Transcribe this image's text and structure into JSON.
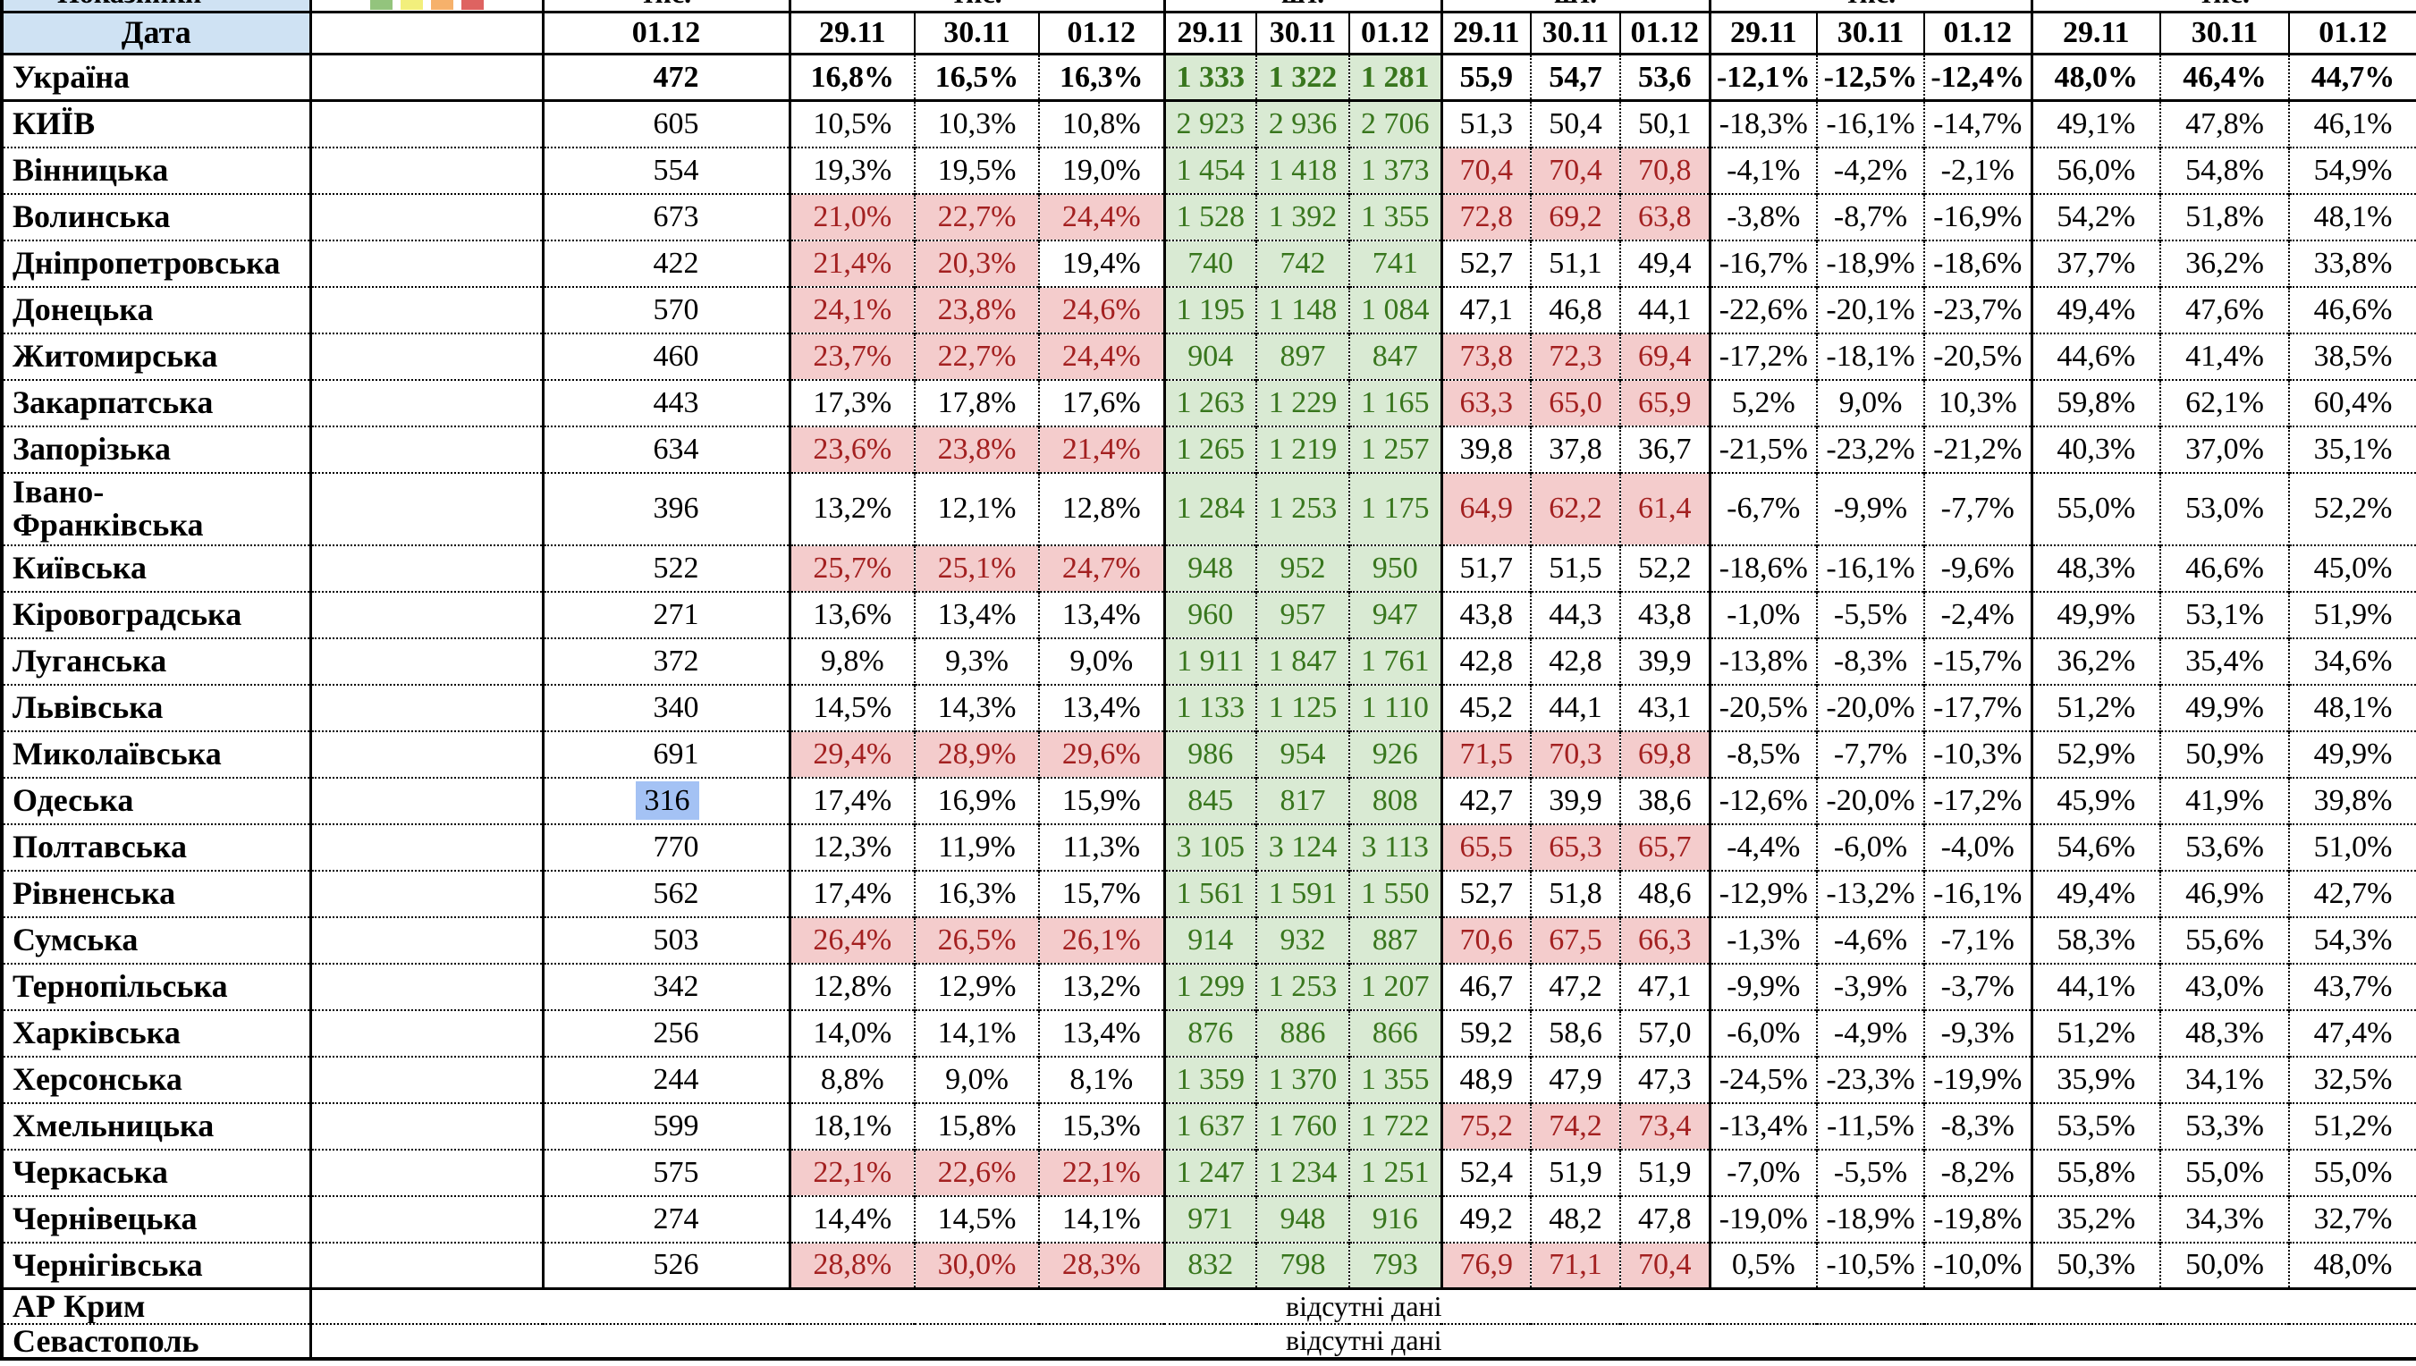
{
  "colors": {
    "red": "#DE6361",
    "orange": "#F6B16B",
    "yellow": "#F2EF7C",
    "legend_green": "#93C47D",
    "header_blue": "#CFE2F3",
    "green_bg": "#D9EAD3",
    "green_text": "#38761D",
    "pink_bg": "#F4CCCC",
    "pink_text": "#A32020",
    "selection_blue": "#A4C2F4"
  },
  "top_row": {
    "col1_fragment": "Показники",
    "legend_colors": [
      "#93C47D",
      "#F2EF7C",
      "#F6B16B",
      "#DE6361"
    ],
    "group_fragments": [
      "тис.",
      "тис.",
      "шт.",
      "шт.",
      "тис.",
      "тис."
    ]
  },
  "date_header": {
    "label": "Дата",
    "single_date": "01.12",
    "triple_dates": [
      "29.11",
      "30.11",
      "01.12"
    ]
  },
  "ukraine_row": {
    "name": "Україна",
    "v1": "472",
    "pct1": [
      "16,8%",
      "16,5%",
      "16,3%"
    ],
    "green": [
      "1 333",
      "1 322",
      "1 281"
    ],
    "v3": [
      "55,9",
      "54,7",
      "53,6"
    ],
    "pct4": [
      "-12,1%",
      "-12,5%",
      "-12,4%"
    ],
    "pct5": [
      "48,0%",
      "46,4%",
      "44,7%"
    ]
  },
  "regions": [
    {
      "name": "КИЇВ",
      "color": "red",
      "v1": "605",
      "pct1": [
        "10,5%",
        "10,3%",
        "10,8%"
      ],
      "green": [
        "2 923",
        "2 936",
        "2 706"
      ],
      "v3": [
        "51,3",
        "50,4",
        "50,1"
      ],
      "pct4": [
        "-18,3%",
        "-16,1%",
        "-14,7%"
      ],
      "pct5": [
        "49,1%",
        "47,8%",
        "46,1%"
      ]
    },
    {
      "name": "Вінницька",
      "color": "red",
      "v1": "554",
      "pct1": [
        "19,3%",
        "19,5%",
        "19,0%"
      ],
      "green": [
        "1 454",
        "1 418",
        "1 373"
      ],
      "v3": [
        "70,4",
        "70,4",
        "70,8"
      ],
      "pct4": [
        "-4,1%",
        "-4,2%",
        "-2,1%"
      ],
      "pct5": [
        "56,0%",
        "54,8%",
        "54,9%"
      ]
    },
    {
      "name": "Волинська",
      "color": "red",
      "v1": "673",
      "pct1": [
        "21,0%",
        "22,7%",
        "24,4%"
      ],
      "green": [
        "1 528",
        "1 392",
        "1 355"
      ],
      "v3": [
        "72,8",
        "69,2",
        "63,8"
      ],
      "pct4": [
        "-3,8%",
        "-8,7%",
        "-16,9%"
      ],
      "pct5": [
        "54,2%",
        "51,8%",
        "48,1%"
      ]
    },
    {
      "name": "Дніпропетровська",
      "color": "red",
      "v1": "422",
      "pct1": [
        "21,4%",
        "20,3%",
        "19,4%"
      ],
      "green": [
        "740",
        "742",
        "741"
      ],
      "v3": [
        "52,7",
        "51,1",
        "49,4"
      ],
      "pct4": [
        "-16,7%",
        "-18,9%",
        "-18,6%"
      ],
      "pct5": [
        "37,7%",
        "36,2%",
        "33,8%"
      ]
    },
    {
      "name": "Донецька",
      "color": "red",
      "v1": "570",
      "pct1": [
        "24,1%",
        "23,8%",
        "24,6%"
      ],
      "green": [
        "1 195",
        "1 148",
        "1 084"
      ],
      "v3": [
        "47,1",
        "46,8",
        "44,1"
      ],
      "pct4": [
        "-22,6%",
        "-20,1%",
        "-23,7%"
      ],
      "pct5": [
        "49,4%",
        "47,6%",
        "46,6%"
      ]
    },
    {
      "name": "Житомирська",
      "color": "red",
      "v1": "460",
      "pct1": [
        "23,7%",
        "22,7%",
        "24,4%"
      ],
      "green": [
        "904",
        "897",
        "847"
      ],
      "v3": [
        "73,8",
        "72,3",
        "69,4"
      ],
      "pct4": [
        "-17,2%",
        "-18,1%",
        "-20,5%"
      ],
      "pct5": [
        "44,6%",
        "41,4%",
        "38,5%"
      ]
    },
    {
      "name": "Закарпатська",
      "color": "orange",
      "v1": "443",
      "pct1": [
        "17,3%",
        "17,8%",
        "17,6%"
      ],
      "green": [
        "1 263",
        "1 229",
        "1 165"
      ],
      "v3": [
        "63,3",
        "65,0",
        "65,9"
      ],
      "pct4": [
        "5,2%",
        "9,0%",
        "10,3%"
      ],
      "pct5": [
        "59,8%",
        "62,1%",
        "60,4%"
      ]
    },
    {
      "name": "Запорізька",
      "color": "red",
      "v1": "634",
      "pct1": [
        "23,6%",
        "23,8%",
        "21,4%"
      ],
      "green": [
        "1 265",
        "1 219",
        "1 257"
      ],
      "v3": [
        "39,8",
        "37,8",
        "36,7"
      ],
      "pct4": [
        "-21,5%",
        "-23,2%",
        "-21,2%"
      ],
      "pct5": [
        "40,3%",
        "37,0%",
        "35,1%"
      ]
    },
    {
      "name": "Івано-\nФранківська",
      "color": "red",
      "tall": true,
      "v1": "396",
      "pct1": [
        "13,2%",
        "12,1%",
        "12,8%"
      ],
      "green": [
        "1 284",
        "1 253",
        "1 175"
      ],
      "v3": [
        "64,9",
        "62,2",
        "61,4"
      ],
      "pct4": [
        "-6,7%",
        "-9,9%",
        "-7,7%"
      ],
      "pct5": [
        "55,0%",
        "53,0%",
        "52,2%"
      ]
    },
    {
      "name": "Київська",
      "color": "red",
      "v1": "522",
      "pct1": [
        "25,7%",
        "25,1%",
        "24,7%"
      ],
      "green": [
        "948",
        "952",
        "950"
      ],
      "v3": [
        "51,7",
        "51,5",
        "52,2"
      ],
      "pct4": [
        "-18,6%",
        "-16,1%",
        "-9,6%"
      ],
      "pct5": [
        "48,3%",
        "46,6%",
        "45,0%"
      ]
    },
    {
      "name": "Кіровоградська",
      "color": "yellow",
      "v1": "271",
      "pct1": [
        "13,6%",
        "13,4%",
        "13,4%"
      ],
      "green": [
        "960",
        "957",
        "947"
      ],
      "v3": [
        "43,8",
        "44,3",
        "43,8"
      ],
      "pct4": [
        "-1,0%",
        "-5,5%",
        "-2,4%"
      ],
      "pct5": [
        "49,9%",
        "53,1%",
        "51,9%"
      ]
    },
    {
      "name": "Луганська",
      "color": "red",
      "v1": "372",
      "pct1": [
        "9,8%",
        "9,3%",
        "9,0%"
      ],
      "green": [
        "1 911",
        "1 847",
        "1 761"
      ],
      "v3": [
        "42,8",
        "42,8",
        "39,9"
      ],
      "pct4": [
        "-13,8%",
        "-8,3%",
        "-15,7%"
      ],
      "pct5": [
        "36,2%",
        "35,4%",
        "34,6%"
      ]
    },
    {
      "name": "Львівська",
      "color": "red",
      "v1": "340",
      "pct1": [
        "14,5%",
        "14,3%",
        "13,4%"
      ],
      "green": [
        "1 133",
        "1 125",
        "1 110"
      ],
      "v3": [
        "45,2",
        "44,1",
        "43,1"
      ],
      "pct4": [
        "-20,5%",
        "-20,0%",
        "-17,7%"
      ],
      "pct5": [
        "51,2%",
        "49,9%",
        "48,1%"
      ]
    },
    {
      "name": "Миколаївська",
      "color": "red",
      "v1": "691",
      "pct1": [
        "29,4%",
        "28,9%",
        "29,6%"
      ],
      "green": [
        "986",
        "954",
        "926"
      ],
      "v3": [
        "71,5",
        "70,3",
        "69,8"
      ],
      "pct4": [
        "-8,5%",
        "-7,7%",
        "-10,3%"
      ],
      "pct5": [
        "52,9%",
        "50,9%",
        "49,9%"
      ]
    },
    {
      "name": "Одеська",
      "color": "red",
      "v1": "316",
      "v1_selected": true,
      "pct1": [
        "17,4%",
        "16,9%",
        "15,9%"
      ],
      "green": [
        "845",
        "817",
        "808"
      ],
      "v3": [
        "42,7",
        "39,9",
        "38,6"
      ],
      "pct4": [
        "-12,6%",
        "-20,0%",
        "-17,2%"
      ],
      "pct5": [
        "45,9%",
        "41,9%",
        "39,8%"
      ]
    },
    {
      "name": "Полтавська",
      "color": "orange",
      "v1": "770",
      "pct1": [
        "12,3%",
        "11,9%",
        "11,3%"
      ],
      "green": [
        "3 105",
        "3 124",
        "3 113"
      ],
      "v3": [
        "65,5",
        "65,3",
        "65,7"
      ],
      "pct4": [
        "-4,4%",
        "-6,0%",
        "-4,0%"
      ],
      "pct5": [
        "54,6%",
        "53,6%",
        "51,0%"
      ]
    },
    {
      "name": "Рівненська",
      "color": "red",
      "v1": "562",
      "pct1": [
        "17,4%",
        "16,3%",
        "15,7%"
      ],
      "green": [
        "1 561",
        "1 591",
        "1 550"
      ],
      "v3": [
        "52,7",
        "51,8",
        "48,6"
      ],
      "pct4": [
        "-12,9%",
        "-13,2%",
        "-16,1%"
      ],
      "pct5": [
        "49,4%",
        "46,9%",
        "42,7%"
      ]
    },
    {
      "name": "Сумська",
      "color": "red",
      "v1": "503",
      "pct1": [
        "26,4%",
        "26,5%",
        "26,1%"
      ],
      "green": [
        "914",
        "932",
        "887"
      ],
      "v3": [
        "70,6",
        "67,5",
        "66,3"
      ],
      "pct4": [
        "-1,3%",
        "-4,6%",
        "-7,1%"
      ],
      "pct5": [
        "58,3%",
        "55,6%",
        "54,3%"
      ]
    },
    {
      "name": "Тернопільська",
      "color": "yellow",
      "v1": "342",
      "pct1": [
        "12,8%",
        "12,9%",
        "13,2%"
      ],
      "green": [
        "1 299",
        "1 253",
        "1 207"
      ],
      "v3": [
        "46,7",
        "47,2",
        "47,1"
      ],
      "pct4": [
        "-9,9%",
        "-3,9%",
        "-3,7%"
      ],
      "pct5": [
        "44,1%",
        "43,0%",
        "43,7%"
      ]
    },
    {
      "name": "Харківська",
      "color": "yellow",
      "v1": "256",
      "pct1": [
        "14,0%",
        "14,1%",
        "13,4%"
      ],
      "green": [
        "876",
        "886",
        "866"
      ],
      "v3": [
        "59,2",
        "58,6",
        "57,0"
      ],
      "pct4": [
        "-6,0%",
        "-4,9%",
        "-9,3%"
      ],
      "pct5": [
        "51,2%",
        "48,3%",
        "47,4%"
      ]
    },
    {
      "name": "Херсонська",
      "color": "red",
      "v1": "244",
      "pct1": [
        "8,8%",
        "9,0%",
        "8,1%"
      ],
      "green": [
        "1 359",
        "1 370",
        "1 355"
      ],
      "v3": [
        "48,9",
        "47,9",
        "47,3"
      ],
      "pct4": [
        "-24,5%",
        "-23,3%",
        "-19,9%"
      ],
      "pct5": [
        "35,9%",
        "34,1%",
        "32,5%"
      ]
    },
    {
      "name": "Хмельницька",
      "color": "red",
      "v1": "599",
      "pct1": [
        "18,1%",
        "15,8%",
        "15,3%"
      ],
      "green": [
        "1 637",
        "1 760",
        "1 722"
      ],
      "v3": [
        "75,2",
        "74,2",
        "73,4"
      ],
      "pct4": [
        "-13,4%",
        "-11,5%",
        "-8,3%"
      ],
      "pct5": [
        "53,5%",
        "53,3%",
        "51,2%"
      ]
    },
    {
      "name": "Черкаська",
      "color": "red",
      "v1": "575",
      "pct1": [
        "22,1%",
        "22,6%",
        "22,1%"
      ],
      "green": [
        "1 247",
        "1 234",
        "1 251"
      ],
      "v3": [
        "52,4",
        "51,9",
        "51,9"
      ],
      "pct4": [
        "-7,0%",
        "-5,5%",
        "-8,2%"
      ],
      "pct5": [
        "55,8%",
        "55,0%",
        "55,0%"
      ]
    },
    {
      "name": "Чернівецька",
      "color": "yellow",
      "v1": "274",
      "pct1": [
        "14,4%",
        "14,5%",
        "14,1%"
      ],
      "green": [
        "971",
        "948",
        "916"
      ],
      "v3": [
        "49,2",
        "48,2",
        "47,8"
      ],
      "pct4": [
        "-19,0%",
        "-18,9%",
        "-19,8%"
      ],
      "pct5": [
        "35,2%",
        "34,3%",
        "32,7%"
      ]
    },
    {
      "name": "Чернігівська",
      "color": "red",
      "v1": "526",
      "pct1": [
        "28,8%",
        "30,0%",
        "28,3%"
      ],
      "green": [
        "832",
        "798",
        "793"
      ],
      "v3": [
        "76,9",
        "71,1",
        "70,4"
      ],
      "pct4": [
        "0,5%",
        "-10,5%",
        "-10,0%"
      ],
      "pct5": [
        "50,3%",
        "50,0%",
        "48,0%"
      ]
    }
  ],
  "no_data_rows": [
    {
      "name": "АР Крим",
      "text": "відсутні дані"
    },
    {
      "name": "Севастополь",
      "text": "відсутні дані"
    }
  ]
}
